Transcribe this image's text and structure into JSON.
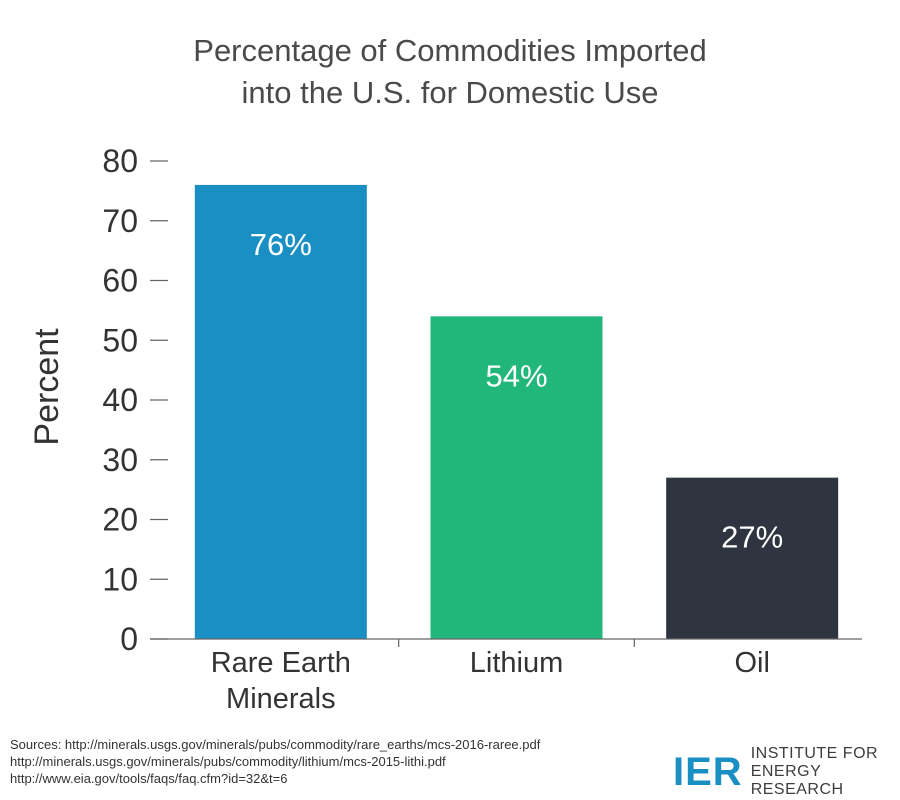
{
  "chart_data": {
    "type": "bar",
    "title_lines": [
      "Percentage of Commodities Imported",
      "into the U.S. for Domestic Use"
    ],
    "ylabel": "Percent",
    "xlabel": "",
    "ylim": [
      0,
      80
    ],
    "yticks": [
      0,
      10,
      20,
      30,
      40,
      50,
      60,
      70,
      80
    ],
    "categories": [
      {
        "lines": [
          "Rare Earth",
          "Minerals"
        ],
        "value": 76,
        "label": "76%",
        "color": "#1a8fc4"
      },
      {
        "lines": [
          "Lithium"
        ],
        "value": 54,
        "label": "54%",
        "color": "#22b77a"
      },
      {
        "lines": [
          "Oil"
        ],
        "value": 27,
        "label": "27%",
        "color": "#2f3540"
      }
    ],
    "grid": false,
    "legend": "none"
  },
  "sources": [
    "Sources: http://minerals.usgs.gov/minerals/pubs/commodity/rare_earths/mcs-2016-raree.pdf",
    "http://minerals.usgs.gov/minerals/pubs/commodity/lithium/mcs-2015-lithi.pdf",
    "http://www.eia.gov/tools/faqs/faq.cfm?id=32&t=6"
  ],
  "logo": {
    "mark": "IER",
    "line1": "INSTITUTE FOR",
    "line2": "ENERGY RESEARCH",
    "color": "#1a8fc4"
  }
}
